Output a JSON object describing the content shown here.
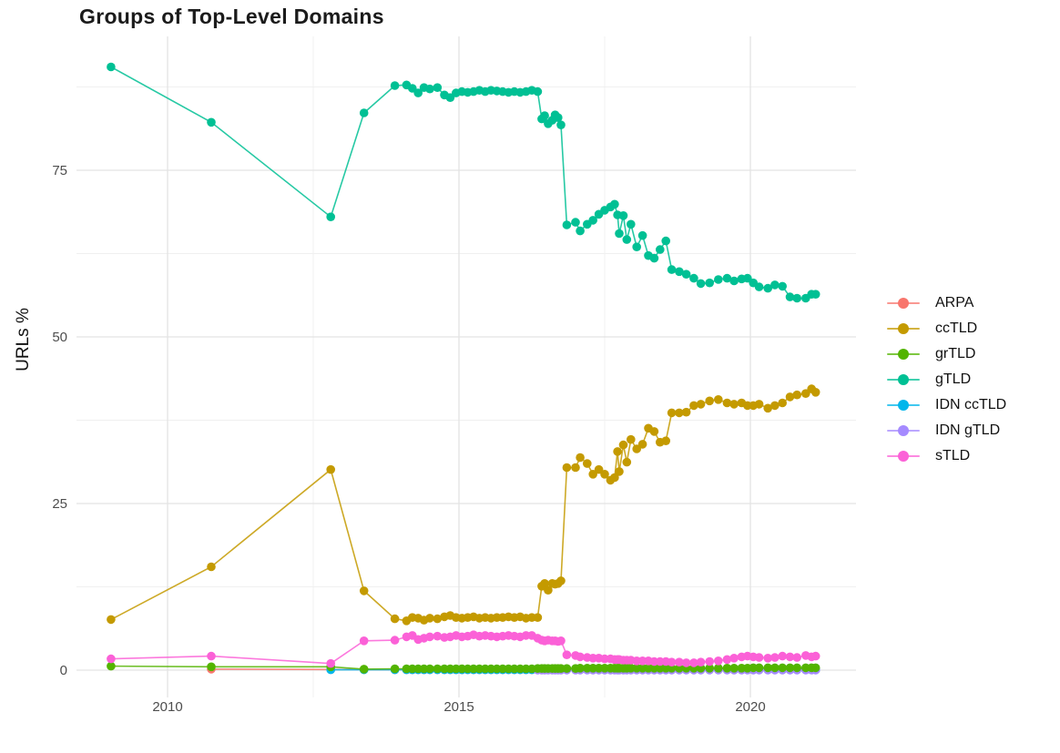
{
  "title": "Groups of Top-Level Domains",
  "y_axis_label": "URLs %",
  "legend": {
    "items": [
      {
        "label": "ARPA",
        "color": "#F8766D"
      },
      {
        "label": "ccTLD",
        "color": "#C49A00"
      },
      {
        "label": "grTLD",
        "color": "#53B400"
      },
      {
        "label": "gTLD",
        "color": "#00C094"
      },
      {
        "label": "IDN ccTLD",
        "color": "#00B6EB"
      },
      {
        "label": "IDN gTLD",
        "color": "#A58AFF"
      },
      {
        "label": "sTLD",
        "color": "#FB61D7"
      }
    ]
  },
  "axes": {
    "x": {
      "major_ticks": [
        {
          "label": "2010",
          "value": 2010
        },
        {
          "label": "2015",
          "value": 2015
        },
        {
          "label": "2020",
          "value": 2020
        }
      ],
      "minor": [
        2012.5,
        2017.5
      ]
    },
    "y": {
      "major_ticks": [
        {
          "label": "0",
          "value": 0
        },
        {
          "label": "25",
          "value": 25
        },
        {
          "label": "50",
          "value": 50
        },
        {
          "label": "75",
          "value": 75
        }
      ],
      "minor": [
        12.5,
        37.5,
        62.5,
        87.5
      ]
    }
  },
  "chart_data": {
    "type": "line",
    "title": "Groups of Top-Level Domains",
    "xlabel": "",
    "ylabel": "URLs %",
    "xlim": [
      2008.5,
      2021.8
    ],
    "ylim": [
      0,
      95
    ],
    "grid": true,
    "legend_position": "right",
    "x": [
      2009.03,
      2010.75,
      2012.8,
      2013.37,
      2013.9,
      2014.1,
      2014.2,
      2014.3,
      2014.4,
      2014.5,
      2014.63,
      2014.75,
      2014.85,
      2014.95,
      2015.05,
      2015.15,
      2015.25,
      2015.35,
      2015.45,
      2015.55,
      2015.65,
      2015.75,
      2015.85,
      2015.95,
      2016.05,
      2016.15,
      2016.25,
      2016.35,
      2016.42,
      2016.47,
      2016.53,
      2016.6,
      2016.65,
      2016.7,
      2016.75,
      2016.85,
      2017.0,
      2017.08,
      2017.2,
      2017.3,
      2017.4,
      2017.5,
      2017.6,
      2017.67,
      2017.72,
      2017.75,
      2017.82,
      2017.88,
      2017.95,
      2018.05,
      2018.15,
      2018.25,
      2018.35,
      2018.45,
      2018.55,
      2018.65,
      2018.78,
      2018.9,
      2019.03,
      2019.15,
      2019.3,
      2019.45,
      2019.6,
      2019.72,
      2019.85,
      2019.95,
      2020.05,
      2020.15,
      2020.3,
      2020.42,
      2020.55,
      2020.68,
      2020.8,
      2020.95,
      2021.05,
      2021.12
    ],
    "series": [
      {
        "name": "ARPA",
        "color": "#F8766D",
        "values": [
          null,
          0.15,
          0.1,
          0.08,
          0.05,
          0.05,
          0.05,
          0.05,
          0.05,
          0.05,
          0.05,
          0.05,
          0.05,
          0.05,
          0.05,
          0.05,
          0.05,
          0.05,
          0.05,
          0.05,
          0.05,
          0.05,
          0.05,
          0.05,
          0.05,
          0.05,
          0.05,
          0.05,
          0.05,
          0.05,
          0.05,
          0.05,
          0.05,
          0.05,
          0.05,
          0.05,
          0.05,
          0.05,
          0.05,
          0.05,
          0.05,
          0.05,
          0.05,
          0.05,
          0.05,
          0.05,
          0.05,
          0.05,
          0.05,
          0.05,
          0.05,
          0.05,
          0.05,
          0.05,
          0.05,
          0.05,
          0.05,
          0.05,
          0.05,
          0.05,
          0.05,
          0.05,
          0.05,
          0.05,
          0.05,
          0.05,
          0.05,
          0.05,
          0.05,
          0.05,
          0.05,
          0.05,
          0.05,
          0.05,
          0.05,
          0.05
        ]
      },
      {
        "name": "IDN ccTLD",
        "color": "#00B6EB",
        "values": [
          null,
          null,
          0.05,
          0.05,
          0.05,
          0.05,
          0.05,
          0.05,
          0.05,
          0.05,
          0.05,
          0.05,
          0.05,
          0.05,
          0.05,
          0.05,
          0.05,
          0.05,
          0.05,
          0.05,
          0.05,
          0.05,
          0.05,
          0.05,
          0.05,
          0.05,
          0.05,
          0.05,
          0.05,
          0.05,
          0.05,
          0.05,
          0.05,
          0.05,
          0.05,
          0.05,
          0.05,
          0.05,
          0.05,
          0.05,
          0.05,
          0.05,
          0.05,
          0.05,
          0.05,
          0.05,
          0.05,
          0.05,
          0.05,
          0.05,
          0.05,
          0.05,
          0.05,
          0.05,
          0.05,
          0.05,
          0.05,
          0.05,
          0.05,
          0.05,
          0.05,
          0.05,
          0.05,
          0.05,
          0.05,
          0.05,
          0.05,
          0.05,
          0.05,
          0.05,
          0.05,
          0.05,
          0.05,
          0.05,
          0.05,
          0.05
        ]
      },
      {
        "name": "IDN gTLD",
        "color": "#A58AFF",
        "values": [
          null,
          null,
          null,
          null,
          null,
          null,
          null,
          null,
          null,
          null,
          null,
          null,
          null,
          null,
          null,
          null,
          null,
          null,
          null,
          null,
          null,
          null,
          null,
          null,
          null,
          null,
          null,
          0.02,
          0.02,
          0.02,
          0.02,
          0.02,
          0.02,
          0.02,
          0.02,
          0.02,
          0.02,
          0.02,
          0.02,
          0.02,
          0.02,
          0.02,
          0.02,
          0.02,
          0.02,
          0.02,
          0.02,
          0.02,
          0.02,
          0.02,
          0.02,
          0.02,
          0.02,
          0.02,
          0.02,
          0.02,
          0.02,
          0.02,
          0.02,
          0.02,
          0.02,
          0.02,
          0.02,
          0.02,
          0.02,
          0.02,
          0.02,
          0.02,
          0.02,
          0.02,
          0.02,
          0.02,
          0.02,
          0.02,
          0.02,
          0.02
        ]
      },
      {
        "name": "grTLD",
        "color": "#53B400",
        "values": [
          0.6,
          0.5,
          0.5,
          0.15,
          0.2,
          0.2,
          0.2,
          0.2,
          0.2,
          0.2,
          0.2,
          0.2,
          0.2,
          0.2,
          0.2,
          0.2,
          0.2,
          0.2,
          0.2,
          0.2,
          0.2,
          0.2,
          0.2,
          0.2,
          0.2,
          0.2,
          0.2,
          0.25,
          0.25,
          0.25,
          0.25,
          0.25,
          0.25,
          0.25,
          0.25,
          0.25,
          0.25,
          0.3,
          0.3,
          0.3,
          0.3,
          0.3,
          0.3,
          0.3,
          0.3,
          0.3,
          0.3,
          0.3,
          0.3,
          0.3,
          0.3,
          0.3,
          0.3,
          0.3,
          0.3,
          0.3,
          0.3,
          0.3,
          0.3,
          0.3,
          0.3,
          0.3,
          0.3,
          0.3,
          0.3,
          0.3,
          0.35,
          0.35,
          0.35,
          0.35,
          0.35,
          0.35,
          0.35,
          0.35,
          0.35,
          0.35
        ]
      },
      {
        "name": "ccTLD",
        "color": "#C49A00",
        "values": [
          7.6,
          15.5,
          30.1,
          11.9,
          7.7,
          7.4,
          7.9,
          7.8,
          7.5,
          7.8,
          7.7,
          8.0,
          8.2,
          7.9,
          7.8,
          7.9,
          8.0,
          7.8,
          7.9,
          7.8,
          7.9,
          7.9,
          8.0,
          7.9,
          8.0,
          7.8,
          7.9,
          7.9,
          12.6,
          13.0,
          12.0,
          13.0,
          12.9,
          13.0,
          13.4,
          30.4,
          30.4,
          31.9,
          31.0,
          29.4,
          30.1,
          29.4,
          28.5,
          28.9,
          32.8,
          29.8,
          33.8,
          31.2,
          34.6,
          33.2,
          33.9,
          36.3,
          35.8,
          34.2,
          34.4,
          38.6,
          38.6,
          38.7,
          39.7,
          39.9,
          40.4,
          40.6,
          40.1,
          39.9,
          40.1,
          39.7,
          39.7,
          39.9,
          39.3,
          39.7,
          40.1,
          41.0,
          41.3,
          41.5,
          42.2,
          41.7
        ]
      },
      {
        "name": "gTLD",
        "color": "#00C094",
        "values": [
          90.5,
          82.2,
          68.0,
          83.6,
          87.7,
          87.8,
          87.3,
          86.6,
          87.4,
          87.2,
          87.4,
          86.3,
          85.9,
          86.6,
          86.8,
          86.7,
          86.8,
          87.0,
          86.8,
          87.0,
          86.9,
          86.8,
          86.7,
          86.8,
          86.7,
          86.8,
          87.0,
          86.8,
          82.7,
          83.2,
          82.0,
          82.5,
          83.3,
          82.9,
          81.8,
          66.8,
          67.2,
          65.9,
          66.9,
          67.5,
          68.4,
          69.0,
          69.5,
          69.9,
          68.3,
          65.5,
          68.2,
          64.6,
          66.9,
          63.5,
          65.2,
          62.2,
          61.8,
          63.1,
          64.4,
          60.1,
          59.8,
          59.4,
          58.8,
          58.0,
          58.1,
          58.6,
          58.8,
          58.4,
          58.7,
          58.8,
          58.1,
          57.5,
          57.3,
          57.8,
          57.6,
          56.0,
          55.8,
          55.8,
          56.4,
          56.4
        ]
      },
      {
        "name": "sTLD",
        "color": "#FB61D7",
        "values": [
          1.7,
          2.1,
          1.0,
          4.4,
          4.5,
          5.0,
          5.2,
          4.6,
          4.8,
          5.0,
          5.1,
          4.9,
          5.0,
          5.2,
          5.0,
          5.1,
          5.3,
          5.1,
          5.2,
          5.1,
          5.0,
          5.1,
          5.2,
          5.1,
          5.0,
          5.2,
          5.2,
          4.8,
          4.5,
          4.4,
          4.5,
          4.4,
          4.4,
          4.3,
          4.4,
          2.3,
          2.2,
          2.0,
          1.9,
          1.8,
          1.8,
          1.7,
          1.7,
          1.6,
          1.6,
          1.6,
          1.5,
          1.5,
          1.5,
          1.4,
          1.4,
          1.4,
          1.3,
          1.3,
          1.3,
          1.2,
          1.2,
          1.1,
          1.1,
          1.2,
          1.3,
          1.4,
          1.6,
          1.8,
          2.0,
          2.1,
          2.0,
          1.9,
          1.8,
          1.9,
          2.1,
          2.0,
          1.9,
          2.2,
          2.0,
          2.1
        ]
      }
    ]
  }
}
